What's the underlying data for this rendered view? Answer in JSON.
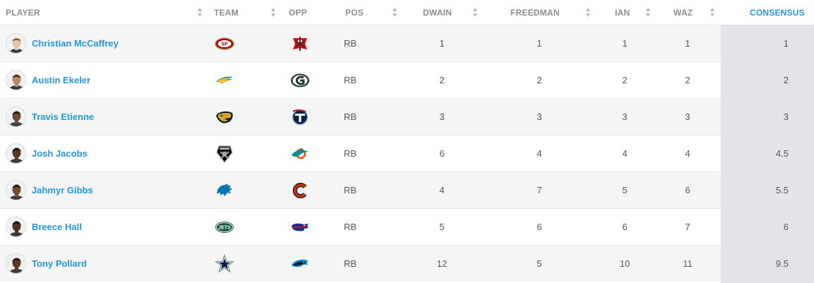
{
  "columns": {
    "player": "PLAYER",
    "team": "TEAM",
    "opp": "OPP",
    "pos": "POS",
    "dwain": "DWAIN",
    "freedman": "FREEDMAN",
    "ian": "IAN",
    "waz": "WAZ",
    "consensus": "CONSENSUS"
  },
  "rows": [
    {
      "name": "Christian McCaffrey",
      "team": "49ers",
      "opp": "Buccaneers",
      "pos": "RB",
      "dwain": "1",
      "freedman": "1",
      "ian": "1",
      "waz": "1",
      "consensus": "1",
      "skin": "#e8c2a4",
      "hair": "#6b4b2a"
    },
    {
      "name": "Austin Ekeler",
      "team": "Chargers",
      "opp": "Packers",
      "pos": "RB",
      "dwain": "2",
      "freedman": "2",
      "ian": "2",
      "waz": "2",
      "consensus": "2",
      "skin": "#b98763",
      "hair": "#2b1d14"
    },
    {
      "name": "Travis Etienne",
      "team": "Jaguars",
      "opp": "Titans",
      "pos": "RB",
      "dwain": "3",
      "freedman": "3",
      "ian": "3",
      "waz": "3",
      "consensus": "3",
      "skin": "#6e4a33",
      "hair": "#1a1210"
    },
    {
      "name": "Josh Jacobs",
      "team": "Raiders",
      "opp": "Dolphins",
      "pos": "RB",
      "dwain": "6",
      "freedman": "4",
      "ian": "4",
      "waz": "4",
      "consensus": "4.5",
      "skin": "#5a3a26",
      "hair": "#120c0a"
    },
    {
      "name": "Jahmyr Gibbs",
      "team": "Lions",
      "opp": "Bears",
      "pos": "RB",
      "dwain": "4",
      "freedman": "7",
      "ian": "5",
      "waz": "6",
      "consensus": "5.5",
      "skin": "#74492f",
      "hair": "#1b120d"
    },
    {
      "name": "Breece Hall",
      "team": "Jets",
      "opp": "Bills",
      "pos": "RB",
      "dwain": "5",
      "freedman": "6",
      "ian": "6",
      "waz": "7",
      "consensus": "6",
      "skin": "#4e3322",
      "hair": "#0f0a08"
    },
    {
      "name": "Tony Pollard",
      "team": "Cowboys",
      "opp": "Panthers",
      "pos": "RB",
      "dwain": "12",
      "freedman": "5",
      "ian": "10",
      "waz": "11",
      "consensus": "9.5",
      "skin": "#5b3a25",
      "hair": "#140d09"
    }
  ],
  "colors": {
    "link": "#2497e3",
    "header": "#8e8e8e",
    "consensus_bg": "#e3e4e8",
    "alt_row": "#f5f5f5"
  }
}
